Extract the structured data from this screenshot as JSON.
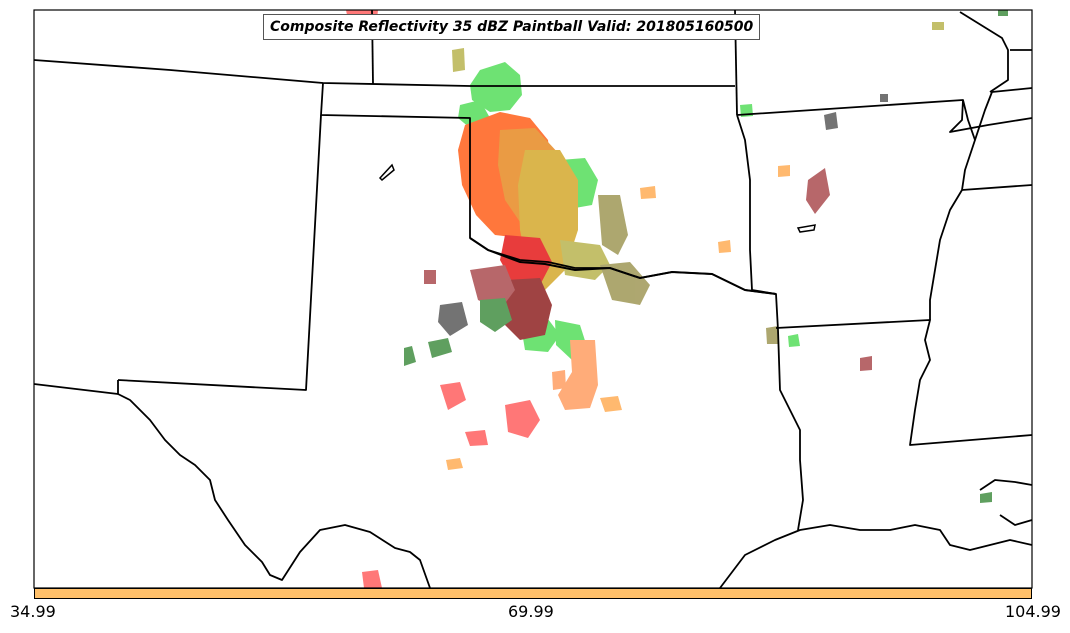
{
  "title": "Composite Reflectivity 35 dBZ Paintball Valid: 201805160500",
  "colorbar": {
    "color": "#ffc06a",
    "ticks": [
      "34.99",
      "69.99",
      "104.99"
    ]
  },
  "colors": {
    "border": "#000000",
    "green": "#4fdc55",
    "olive": "#b7b24a",
    "orange_red": "#ff5a12",
    "orange": "#e6861c",
    "gold": "#d2a626",
    "red": "#e31212",
    "dark_red": "#8b1a1a",
    "maroon": "#a8464a",
    "salmon": "#ff5a5a",
    "light_orange": "#ffaa50",
    "peach": "#ff9a5c",
    "dark_gray": "#555555",
    "dark_green": "#3c8a3c",
    "khaki": "#9c9450"
  }
}
